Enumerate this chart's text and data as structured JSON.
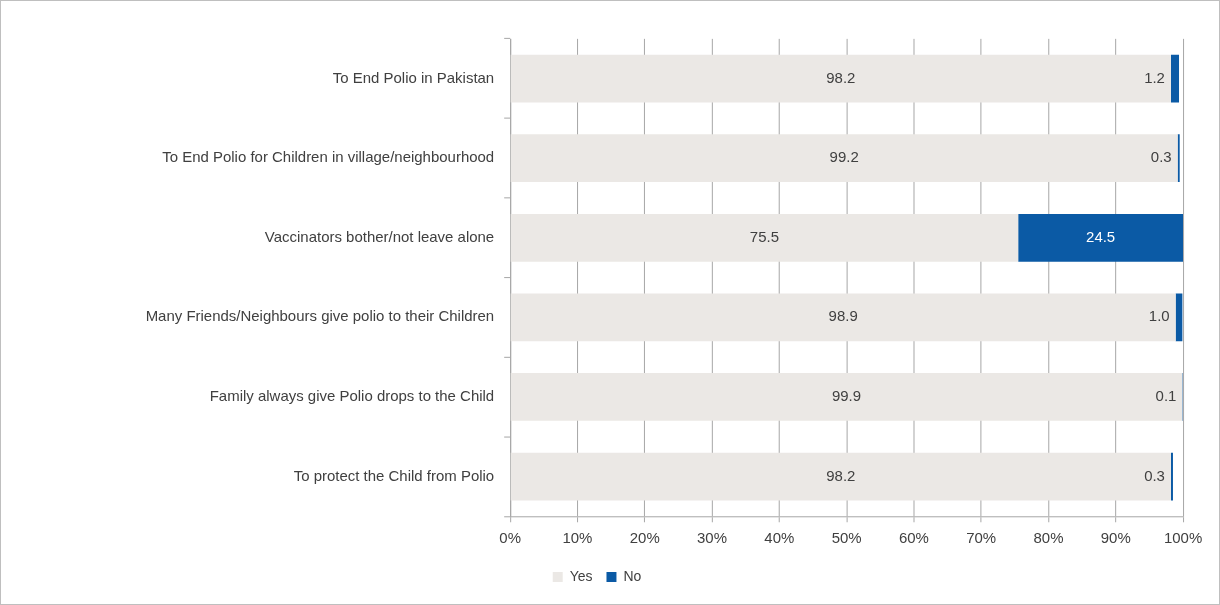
{
  "chart_data": {
    "type": "bar",
    "orientation": "horizontal",
    "stacked": true,
    "categories": [
      "To End Polio in Pakistan",
      "To End Polio for Children in village/neighbourhood",
      "Vaccinators bother/not leave alone",
      "Many Friends/Neighbours give polio to their Children",
      "Family always give Polio drops to the Child",
      "To protect the Child from Polio"
    ],
    "series": [
      {
        "name": "Yes",
        "color": "#ebe8e5",
        "values": [
          98.2,
          99.2,
          75.5,
          98.9,
          99.9,
          98.2
        ],
        "value_labels": [
          "98.2",
          "99.2",
          "75.5",
          "98.9",
          "99.9",
          "98.2"
        ]
      },
      {
        "name": "No",
        "color": "#0b5aa5",
        "values": [
          1.2,
          0.3,
          24.5,
          1.0,
          0.1,
          0.3
        ],
        "value_labels": [
          "1.2",
          "0.3",
          "24.5",
          "1.0",
          "0.1",
          "0.3"
        ]
      }
    ],
    "xlim": [
      0,
      100
    ],
    "xticks": [
      {
        "value": 0,
        "label": "0%"
      },
      {
        "value": 10,
        "label": "10%"
      },
      {
        "value": 20,
        "label": "20%"
      },
      {
        "value": 30,
        "label": "30%"
      },
      {
        "value": 40,
        "label": "40%"
      },
      {
        "value": 50,
        "label": "50%"
      },
      {
        "value": 60,
        "label": "60%"
      },
      {
        "value": 70,
        "label": "70%"
      },
      {
        "value": 80,
        "label": "80%"
      },
      {
        "value": 90,
        "label": "90%"
      },
      {
        "value": 100,
        "label": "100%"
      }
    ],
    "grid": "x",
    "legend": "bottom"
  }
}
